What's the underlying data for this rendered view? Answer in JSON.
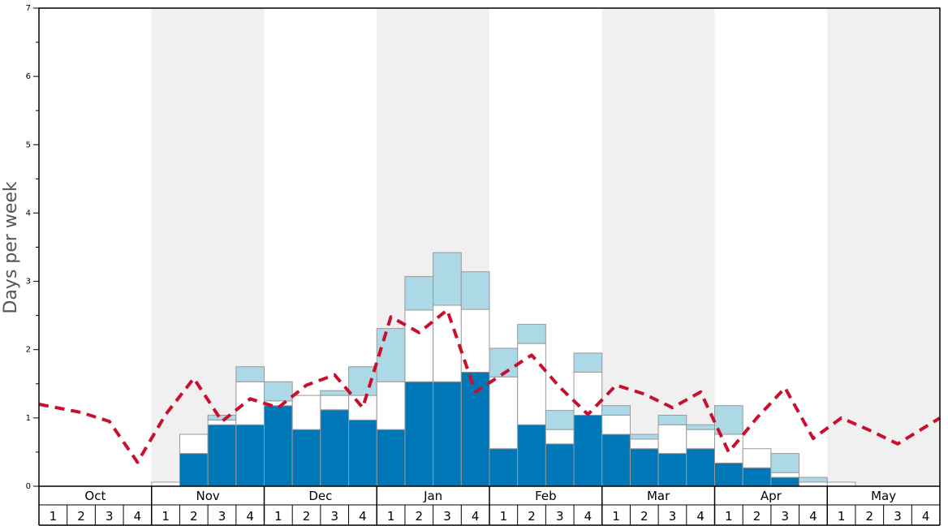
{
  "chart_data": {
    "type": "bar",
    "title": "",
    "ylabel": "Days per week",
    "xlabel": "",
    "ylim": [
      0,
      7
    ],
    "yticks": [
      0,
      1,
      2,
      3,
      4,
      5,
      6,
      7
    ],
    "months": [
      "Oct",
      "Nov",
      "Dec",
      "Jan",
      "Feb",
      "Mar",
      "Apr",
      "May"
    ],
    "weeks": [
      "1",
      "2",
      "3",
      "4"
    ],
    "shaded_months": [
      "Nov",
      "Jan",
      "Mar",
      "May"
    ],
    "colors": {
      "dark": "#0077b6",
      "white": "#ffffff",
      "light": "#add8e6",
      "line": "#c8102e",
      "band": "#f0f0f0",
      "bar_edge": "#999999"
    },
    "series": [
      {
        "type": "stacked-bar-segment",
        "values": [
          0,
          0,
          0,
          0,
          0,
          0.48,
          0.9,
          0.9,
          1.18,
          0.83,
          1.12,
          0.97,
          0.83,
          1.53,
          1.53,
          1.67,
          0.55,
          0.9,
          0.62,
          1.04,
          0.76,
          0.55,
          0.48,
          0.55,
          0.34,
          0.27,
          0.13,
          0,
          0,
          0,
          0,
          0
        ]
      },
      {
        "type": "stacked-bar-segment",
        "values": [
          0,
          0,
          0,
          0,
          0.06,
          0.28,
          0.07,
          0.63,
          0.07,
          0.5,
          0.21,
          0.36,
          0.7,
          1.05,
          1.12,
          0.92,
          1.05,
          1.19,
          0.21,
          0.63,
          0.28,
          0.14,
          0.42,
          0.28,
          0.42,
          0.28,
          0.07,
          0.06,
          0.06,
          0,
          0,
          0
        ]
      },
      {
        "type": "stacked-bar-segment",
        "values": [
          0,
          0,
          0,
          0,
          0,
          0,
          0.07,
          0.22,
          0.28,
          0,
          0.07,
          0.42,
          0.78,
          0.49,
          0.77,
          0.55,
          0.42,
          0.28,
          0.28,
          0.28,
          0.14,
          0.07,
          0.14,
          0.07,
          0.42,
          0,
          0.28,
          0.07,
          0,
          0,
          0,
          0
        ]
      },
      {
        "type": "dashed-line",
        "values": [
          1.2,
          1.08,
          0.95,
          0.35,
          1.05,
          1.58,
          0.95,
          1.28,
          1.15,
          1.48,
          1.63,
          1.15,
          2.48,
          2.25,
          2.58,
          1.38,
          1.65,
          1.92,
          1.45,
          1.05,
          1.48,
          1.35,
          1.15,
          1.38,
          0.5,
          1.0,
          1.44,
          0.7,
          1.0,
          0.82,
          0.62,
          1.0
        ]
      }
    ]
  }
}
